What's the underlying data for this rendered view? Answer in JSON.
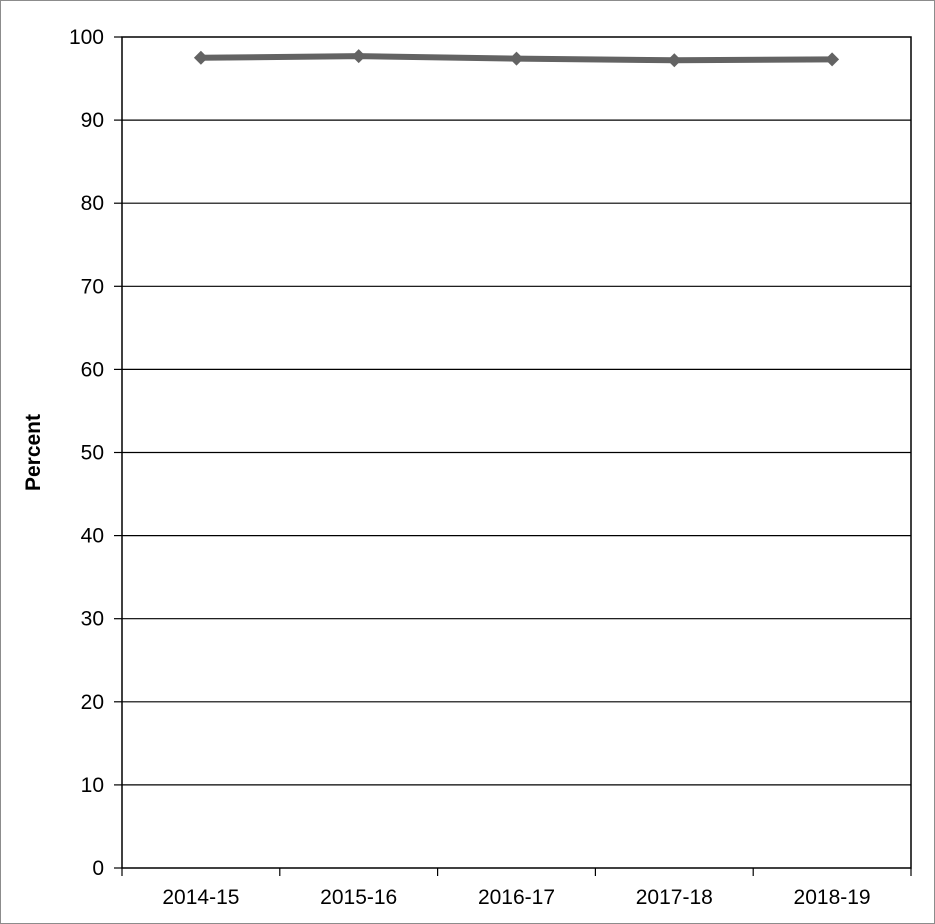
{
  "chart_data": {
    "type": "line",
    "title": "",
    "xlabel": "",
    "ylabel": "Percent",
    "categories": [
      "2014-15",
      "2015-16",
      "2016-17",
      "2017-18",
      "2018-19"
    ],
    "series": [
      {
        "values": [
          97.5,
          97.7,
          97.4,
          97.2,
          97.3
        ]
      }
    ],
    "ylim": [
      0,
      100
    ],
    "yticks": [
      0,
      10,
      20,
      30,
      40,
      50,
      60,
      70,
      80,
      90,
      100
    ],
    "grid": true,
    "legend": "none",
    "colors": {
      "line": "#636363",
      "grid": "#000000",
      "background": "#ffffff"
    }
  }
}
